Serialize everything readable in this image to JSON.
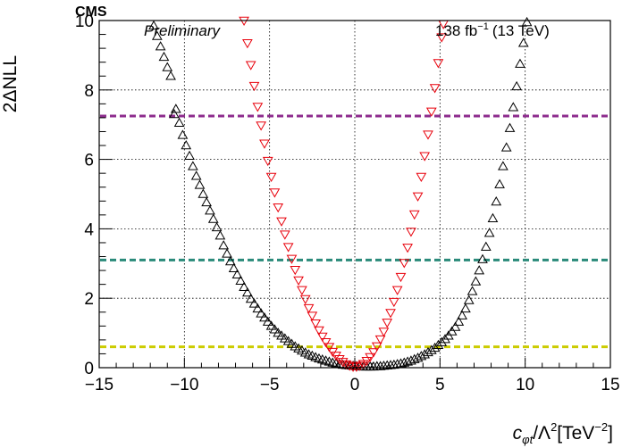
{
  "chart_data": {
    "type": "scatter",
    "xlim": [
      -15,
      15
    ],
    "ylim": [
      0,
      10
    ],
    "x_ticks": [
      "−15",
      "−10",
      "−5",
      "0",
      "5",
      "10",
      "15"
    ],
    "y_ticks": [
      "0",
      "2",
      "4",
      "6",
      "8",
      "10"
    ],
    "grid": true,
    "ylabel": "2ΔNLL",
    "xlabel": {
      "coef": "c",
      "coef_sub": "φt",
      "lambda": "/Λ",
      "lambda_sup": "2",
      "unit_open": "[TeV",
      "unit_sup": "−2",
      "unit_close": "]"
    },
    "header": {
      "experiment": "CMS",
      "status": "Preliminary",
      "lumi": "138 fb",
      "lumi_sup": "−1",
      "energy": "(13 TeV)"
    },
    "series": [
      {
        "marker": "triangle-up-open",
        "color": "#000000",
        "points": [
          [
            -11.8,
            9.85
          ],
          [
            -11.6,
            9.55
          ],
          [
            -11.4,
            9.25
          ],
          [
            -11.2,
            8.95
          ],
          [
            -11.0,
            8.65
          ],
          [
            -10.8,
            8.4
          ],
          [
            -10.6,
            7.3
          ],
          [
            -10.5,
            7.45
          ],
          [
            -10.3,
            7.05
          ],
          [
            -10.1,
            6.7
          ],
          [
            -9.9,
            6.4
          ],
          [
            -9.7,
            6.1
          ],
          [
            -9.5,
            5.8
          ],
          [
            -9.3,
            5.52
          ],
          [
            -9.1,
            5.26
          ],
          [
            -8.9,
            5.0
          ],
          [
            -8.7,
            4.76
          ],
          [
            -8.5,
            4.52
          ],
          [
            -8.3,
            4.28
          ],
          [
            -8.1,
            4.04
          ],
          [
            -7.9,
            3.8
          ],
          [
            -7.7,
            3.52
          ],
          [
            -7.5,
            3.28
          ],
          [
            -7.3,
            3.06
          ],
          [
            -7.1,
            2.86
          ],
          [
            -6.9,
            2.68
          ],
          [
            -6.7,
            2.5
          ],
          [
            -6.5,
            2.32
          ],
          [
            -6.3,
            2.16
          ],
          [
            -6.1,
            1.98
          ],
          [
            -5.9,
            1.84
          ],
          [
            -5.7,
            1.7
          ],
          [
            -5.5,
            1.56
          ],
          [
            -5.3,
            1.44
          ],
          [
            -5.1,
            1.32
          ],
          [
            -4.9,
            1.2
          ],
          [
            -4.7,
            1.1
          ],
          [
            -4.5,
            1.0
          ],
          [
            -4.3,
            0.92
          ],
          [
            -4.1,
            0.84
          ],
          [
            -3.9,
            0.76
          ],
          [
            -3.7,
            0.68
          ],
          [
            -3.5,
            0.61
          ],
          [
            -3.3,
            0.55
          ],
          [
            -3.1,
            0.49
          ],
          [
            -2.9,
            0.43
          ],
          [
            -2.7,
            0.38
          ],
          [
            -2.5,
            0.34
          ],
          [
            -2.3,
            0.3
          ],
          [
            -2.1,
            0.26
          ],
          [
            -1.9,
            0.23
          ],
          [
            -1.7,
            0.2
          ],
          [
            -1.5,
            0.17
          ],
          [
            -1.3,
            0.14
          ],
          [
            -1.1,
            0.12
          ],
          [
            -0.9,
            0.1
          ],
          [
            -0.7,
            0.08
          ],
          [
            -0.5,
            0.07
          ],
          [
            -0.3,
            0.06
          ],
          [
            -0.1,
            0.05
          ],
          [
            0.1,
            0.04
          ],
          [
            0.3,
            0.04
          ],
          [
            0.5,
            0.03
          ],
          [
            0.7,
            0.03
          ],
          [
            0.9,
            0.03
          ],
          [
            1.1,
            0.03
          ],
          [
            1.3,
            0.04
          ],
          [
            1.5,
            0.04
          ],
          [
            1.7,
            0.05
          ],
          [
            1.9,
            0.06
          ],
          [
            2.1,
            0.07
          ],
          [
            2.3,
            0.08
          ],
          [
            2.5,
            0.1
          ],
          [
            2.7,
            0.12
          ],
          [
            2.9,
            0.14
          ],
          [
            3.1,
            0.17
          ],
          [
            3.3,
            0.2
          ],
          [
            3.5,
            0.24
          ],
          [
            3.7,
            0.28
          ],
          [
            3.9,
            0.33
          ],
          [
            4.1,
            0.38
          ],
          [
            4.3,
            0.44
          ],
          [
            4.5,
            0.5
          ],
          [
            4.7,
            0.57
          ],
          [
            4.9,
            0.65
          ],
          [
            5.1,
            0.73
          ],
          [
            5.3,
            0.82
          ],
          [
            5.5,
            0.92
          ],
          [
            5.7,
            1.04
          ],
          [
            5.9,
            1.17
          ],
          [
            6.1,
            1.32
          ],
          [
            6.3,
            1.5
          ],
          [
            6.5,
            1.7
          ],
          [
            6.7,
            1.94
          ],
          [
            6.9,
            2.2
          ],
          [
            7.1,
            2.48
          ],
          [
            7.3,
            2.8
          ],
          [
            7.5,
            3.12
          ],
          [
            7.7,
            3.48
          ],
          [
            7.9,
            3.88
          ],
          [
            8.1,
            4.3
          ],
          [
            8.3,
            4.78
          ],
          [
            8.5,
            5.28
          ],
          [
            8.7,
            5.8
          ],
          [
            8.9,
            6.34
          ],
          [
            9.1,
            6.9
          ],
          [
            9.3,
            7.5
          ],
          [
            9.5,
            8.1
          ],
          [
            9.7,
            8.75
          ],
          [
            9.9,
            9.35
          ],
          [
            10.1,
            9.95
          ]
        ]
      },
      {
        "marker": "triangle-down-open",
        "color": "#e8000b",
        "points": [
          [
            -6.5,
            10.0
          ],
          [
            -6.3,
            9.35
          ],
          [
            -6.1,
            8.72
          ],
          [
            -5.9,
            8.12
          ],
          [
            -5.7,
            7.52
          ],
          [
            -5.5,
            6.98
          ],
          [
            -5.3,
            6.46
          ],
          [
            -5.1,
            5.96
          ],
          [
            -4.9,
            5.5
          ],
          [
            -4.7,
            5.05
          ],
          [
            -4.5,
            4.62
          ],
          [
            -4.3,
            4.22
          ],
          [
            -4.1,
            3.84
          ],
          [
            -3.9,
            3.48
          ],
          [
            -3.7,
            3.14
          ],
          [
            -3.5,
            2.82
          ],
          [
            -3.3,
            2.52
          ],
          [
            -3.1,
            2.24
          ],
          [
            -2.9,
            1.98
          ],
          [
            -2.7,
            1.72
          ],
          [
            -2.5,
            1.5
          ],
          [
            -2.3,
            1.28
          ],
          [
            -2.1,
            1.08
          ],
          [
            -1.9,
            0.9
          ],
          [
            -1.7,
            0.74
          ],
          [
            -1.5,
            0.6
          ],
          [
            -1.3,
            0.46
          ],
          [
            -1.1,
            0.35
          ],
          [
            -0.9,
            0.25
          ],
          [
            -0.7,
            0.17
          ],
          [
            -0.5,
            0.1
          ],
          [
            -0.3,
            0.06
          ],
          [
            -0.1,
            0.03
          ],
          [
            0.1,
            0.03
          ],
          [
            0.3,
            0.06
          ],
          [
            0.5,
            0.11
          ],
          [
            0.7,
            0.2
          ],
          [
            0.9,
            0.31
          ],
          [
            1.1,
            0.45
          ],
          [
            1.3,
            0.62
          ],
          [
            1.5,
            0.82
          ],
          [
            1.7,
            1.04
          ],
          [
            1.9,
            1.3
          ],
          [
            2.1,
            1.58
          ],
          [
            2.3,
            1.9
          ],
          [
            2.5,
            2.24
          ],
          [
            2.7,
            2.62
          ],
          [
            2.9,
            3.02
          ],
          [
            3.1,
            3.46
          ],
          [
            3.3,
            3.92
          ],
          [
            3.5,
            4.42
          ],
          [
            3.7,
            4.94
          ],
          [
            3.9,
            5.5
          ],
          [
            4.1,
            6.1
          ],
          [
            4.3,
            6.72
          ],
          [
            4.5,
            7.38
          ],
          [
            4.7,
            8.06
          ],
          [
            4.9,
            8.78
          ],
          [
            5.1,
            9.52
          ],
          [
            5.2,
            9.9
          ]
        ]
      }
    ],
    "hlines": [
      {
        "y": 0.6,
        "color": "#cccc00",
        "style": "dashed"
      },
      {
        "y": 3.1,
        "color": "#2a8a7a",
        "style": "dashed"
      },
      {
        "y": 7.25,
        "color": "#8e2c8e",
        "style": "dashed"
      }
    ]
  }
}
